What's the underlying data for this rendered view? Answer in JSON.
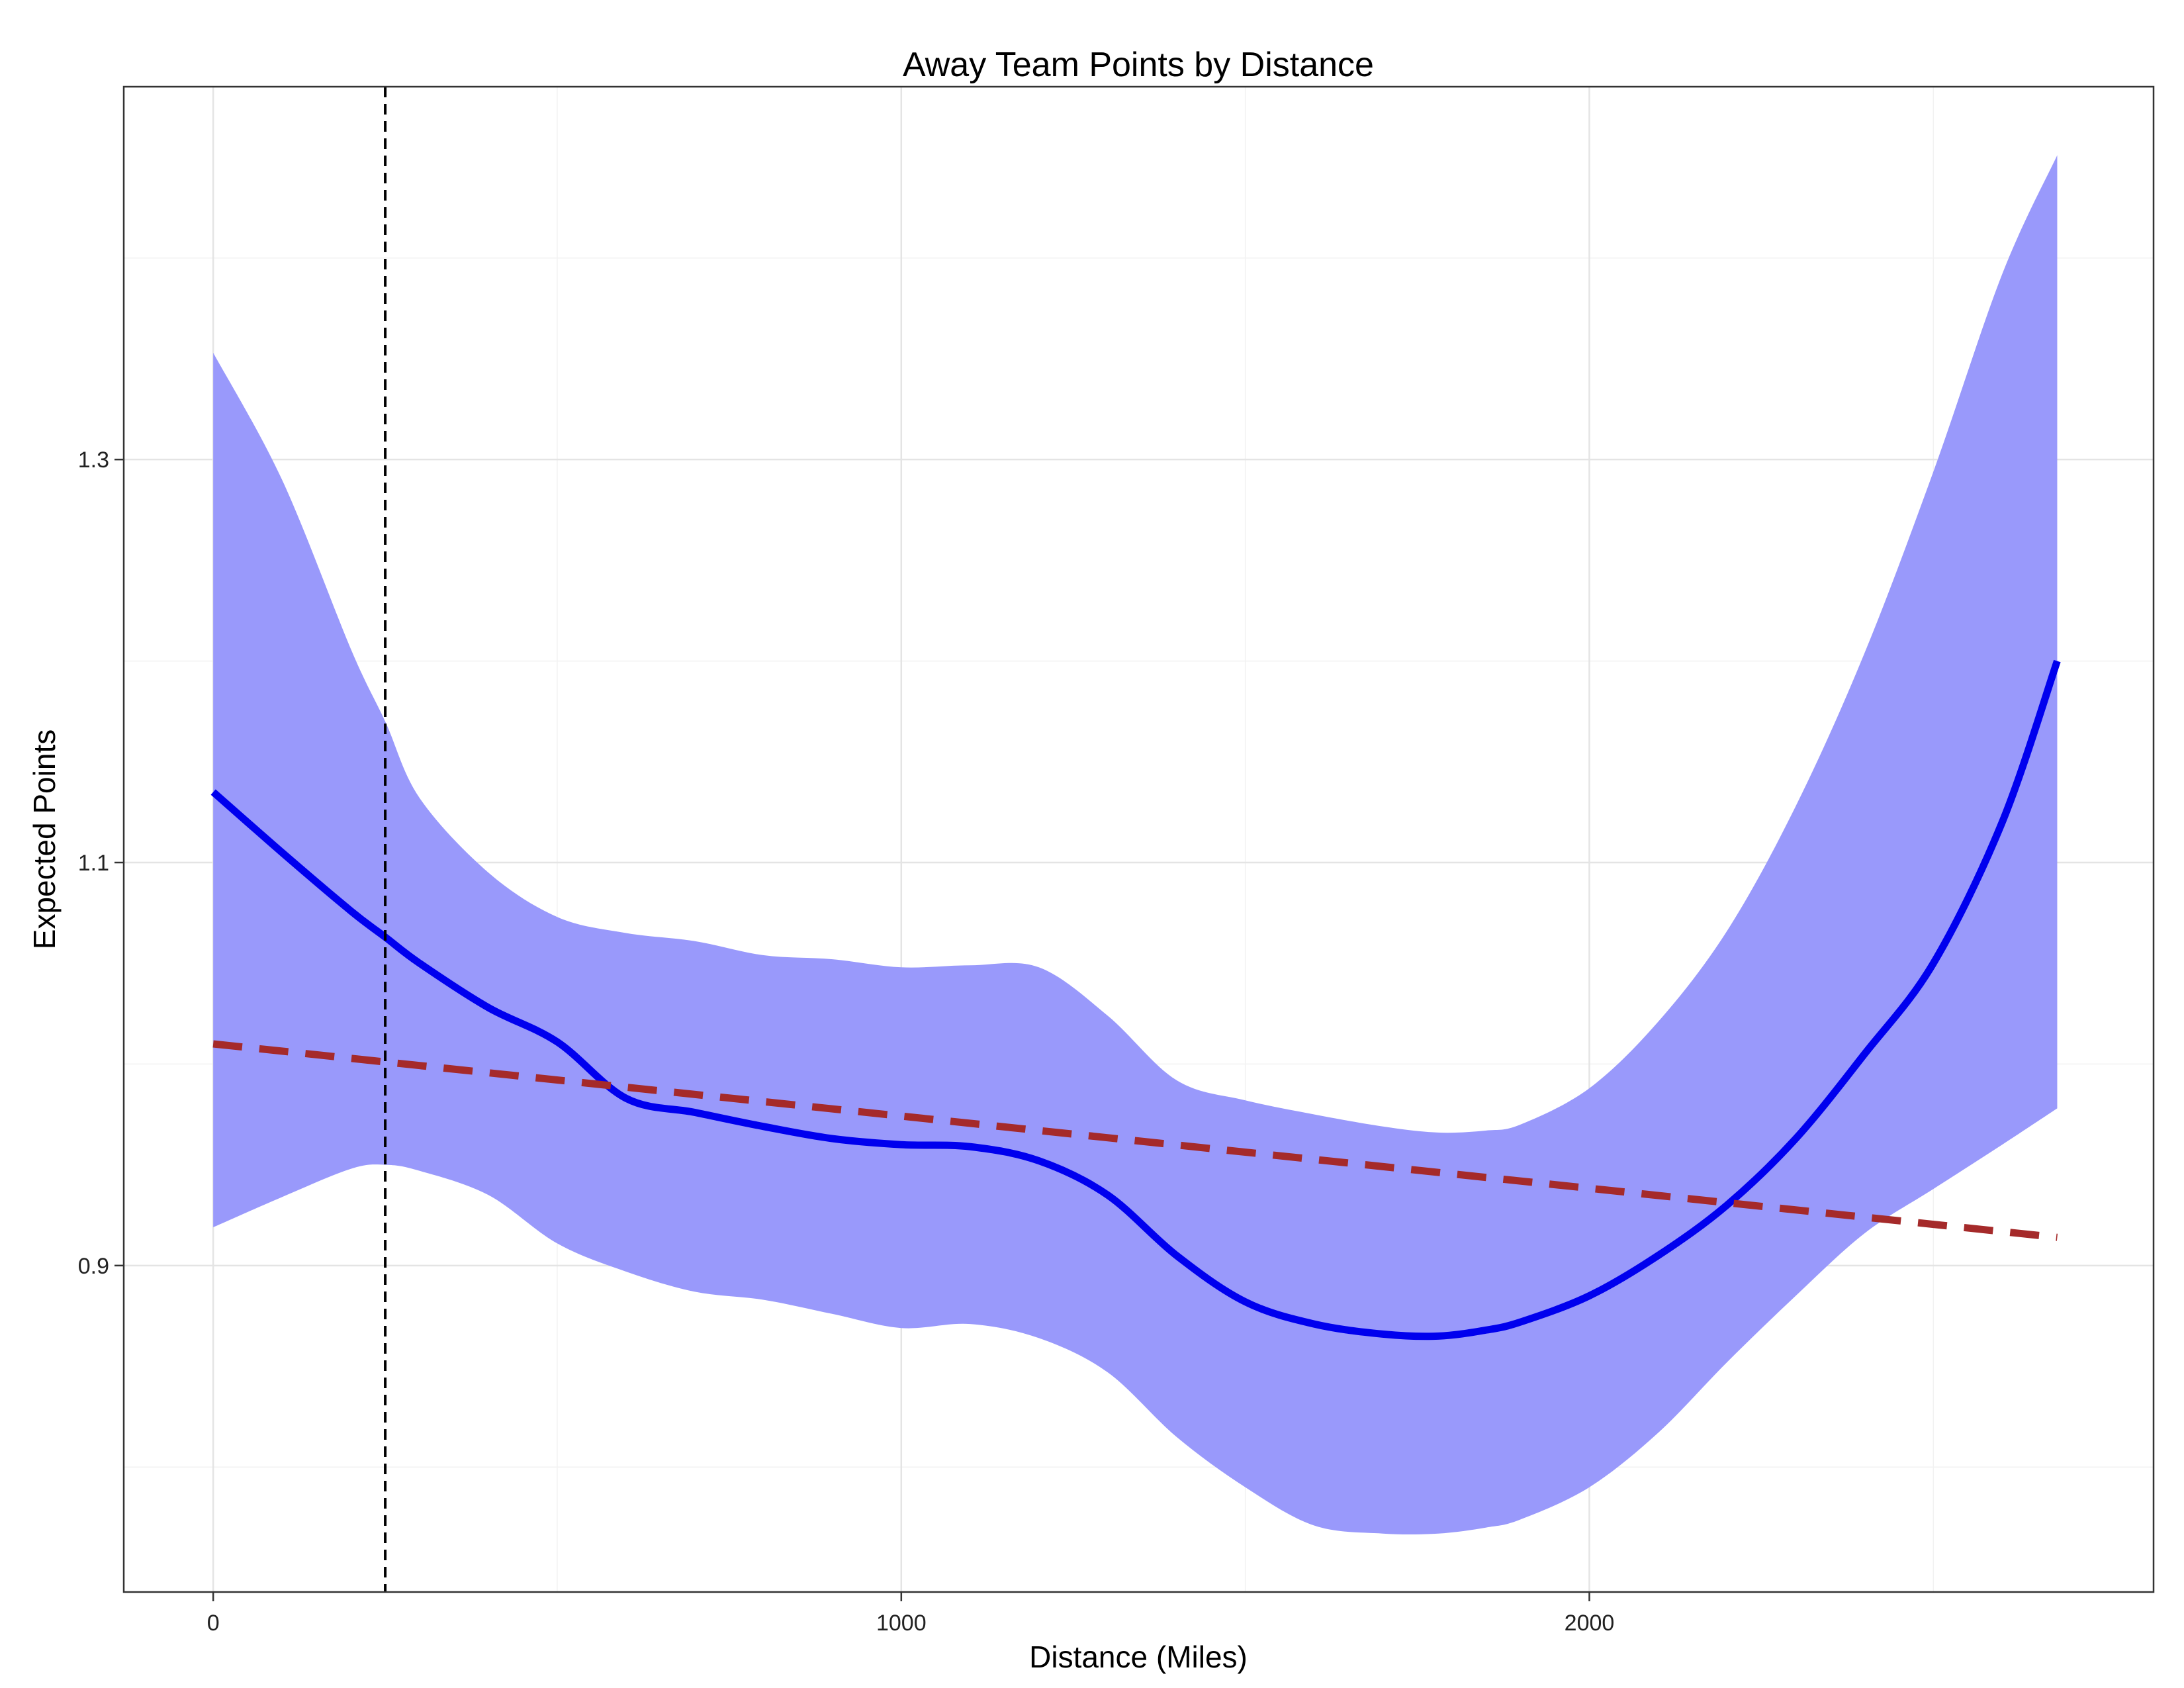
{
  "chart_data": {
    "type": "line",
    "title": "Away Team Points by Distance",
    "xlabel": "Distance (Miles)",
    "ylabel": "Expected Points",
    "xlim": [
      -130,
      2820
    ],
    "ylim": [
      0.738,
      1.485
    ],
    "x_ticks": [
      0,
      1000,
      2000
    ],
    "x_tick_labels": [
      "0",
      "1000",
      "2000"
    ],
    "y_ticks": [
      0.9,
      1.1,
      1.3
    ],
    "y_tick_labels": [
      "0.9",
      "1.1",
      "1.3"
    ],
    "x_minor_grid": [
      500,
      1500,
      2500
    ],
    "y_minor_grid": [
      0.8,
      1.0,
      1.2,
      1.4
    ],
    "grid": true,
    "legend": "none",
    "vline": {
      "x": 250,
      "style": "dashed",
      "color": "#000000"
    },
    "series": [
      {
        "type": "smooth",
        "color": "#0000ee",
        "band_color": "#9999fb",
        "x": [
          0,
          100,
          200,
          250,
          300,
          400,
          500,
          600,
          700,
          800,
          900,
          1000,
          1100,
          1200,
          1300,
          1400,
          1500,
          1600,
          1700,
          1780,
          1850,
          1900,
          2000,
          2100,
          2200,
          2300,
          2400,
          2500,
          2600,
          2680
        ],
        "y": [
          1.135,
          1.105,
          1.076,
          1.063,
          1.05,
          1.028,
          1.011,
          0.983,
          0.976,
          0.969,
          0.963,
          0.96,
          0.959,
          0.952,
          0.935,
          0.905,
          0.882,
          0.871,
          0.866,
          0.865,
          0.868,
          0.872,
          0.885,
          0.905,
          0.93,
          0.963,
          1.005,
          1.05,
          1.12,
          1.2
        ],
        "upper": [
          1.353,
          1.29,
          1.206,
          1.17,
          1.132,
          1.095,
          1.073,
          1.065,
          1.061,
          1.054,
          1.052,
          1.048,
          1.049,
          1.048,
          1.024,
          0.992,
          0.982,
          0.975,
          0.969,
          0.966,
          0.967,
          0.97,
          0.988,
          1.021,
          1.066,
          1.128,
          1.204,
          1.294,
          1.392,
          1.451
        ],
        "lower": [
          0.919,
          0.934,
          0.948,
          0.95,
          0.947,
          0.935,
          0.911,
          0.897,
          0.887,
          0.883,
          0.876,
          0.869,
          0.871,
          0.864,
          0.847,
          0.815,
          0.79,
          0.771,
          0.767,
          0.767,
          0.77,
          0.774,
          0.79,
          0.817,
          0.852,
          0.885,
          0.916,
          0.938,
          0.96,
          0.978
        ]
      },
      {
        "type": "linear",
        "style": "dashed",
        "color": "#a52a2a",
        "x": [
          0,
          2680
        ],
        "y": [
          1.01,
          0.914
        ]
      }
    ]
  }
}
